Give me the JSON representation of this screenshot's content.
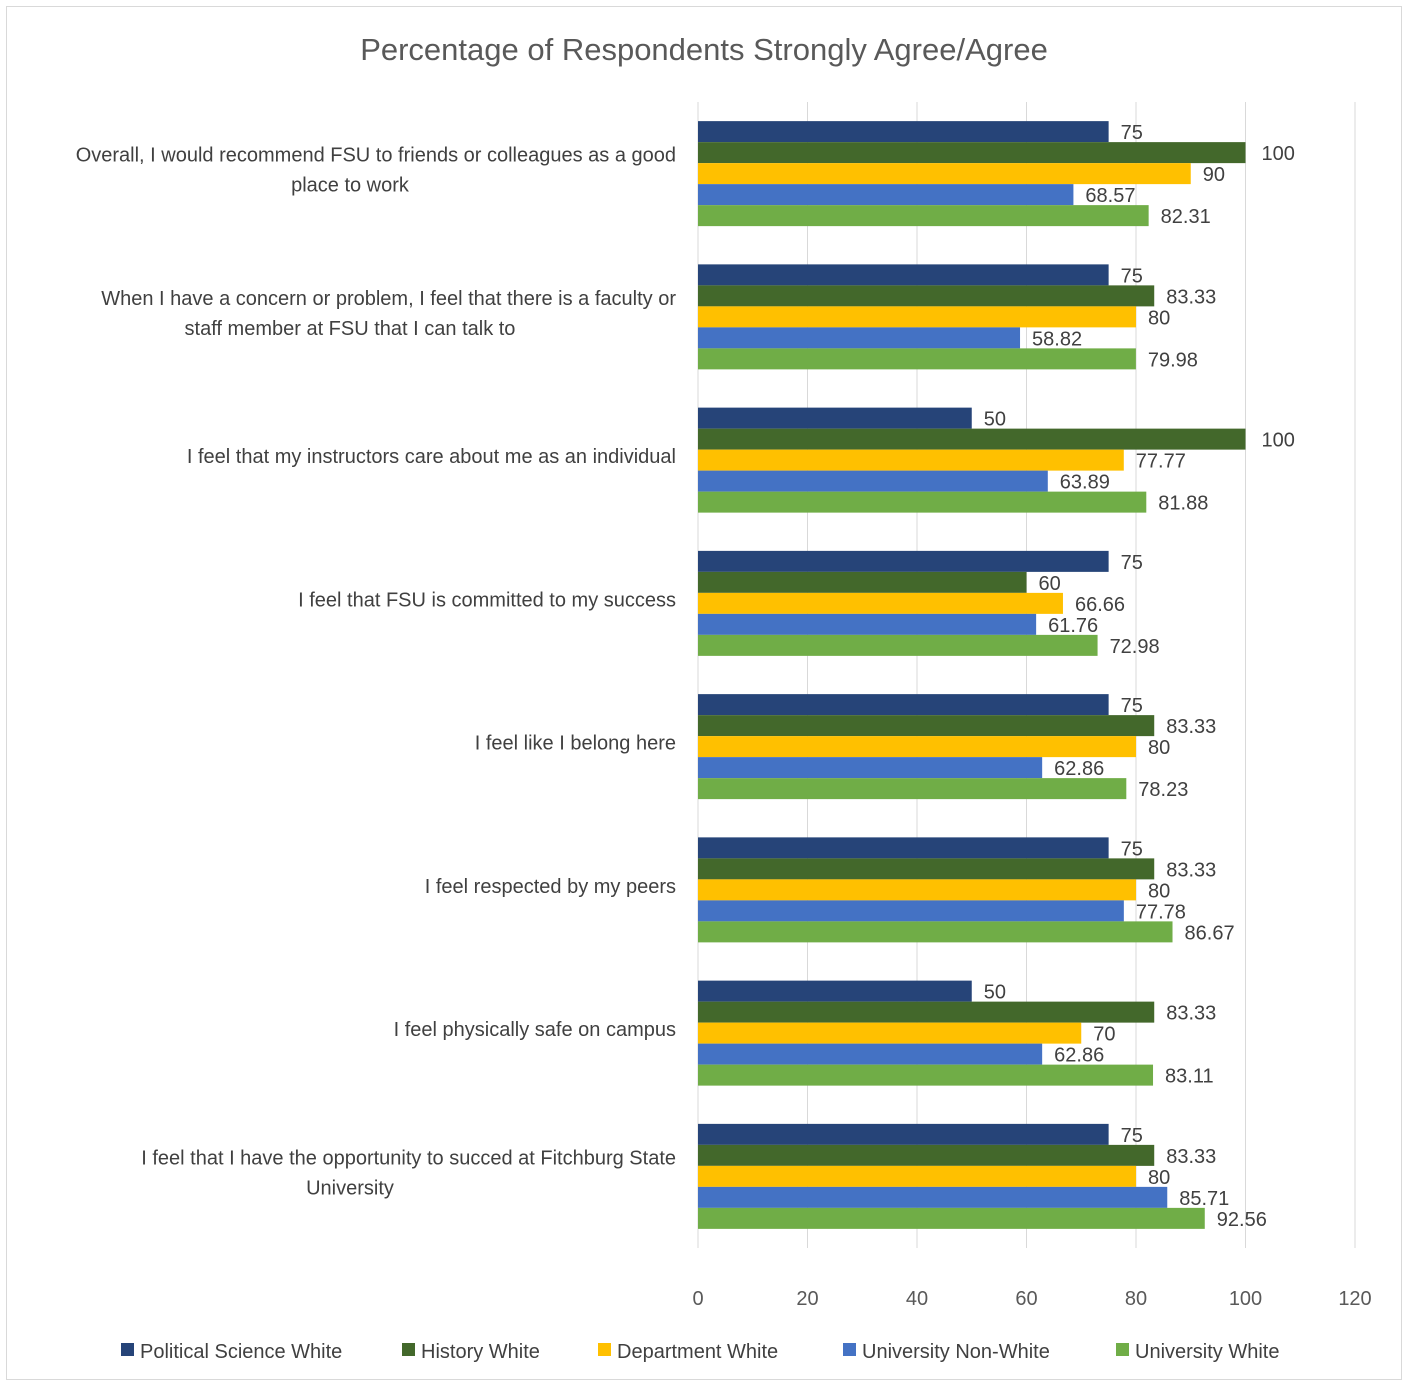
{
  "chart_data": {
    "type": "bar",
    "orientation": "horizontal",
    "title": "Percentage of Respondents Strongly Agree/Agree",
    "xlabel": "",
    "ylabel": "",
    "xlim": [
      0,
      120
    ],
    "x_ticks": [
      0,
      20,
      40,
      60,
      80,
      100,
      120
    ],
    "grid": true,
    "legend_position": "bottom",
    "categories": [
      [
        "Overall, I would recommend FSU to friends or colleagues as a good",
        "place to work"
      ],
      [
        "When I have a concern or problem, I feel that there is a faculty or",
        "staff member at FSU that I can talk to"
      ],
      [
        "I feel that my instructors care about me as an individual"
      ],
      [
        "I feel that FSU is committed to my success"
      ],
      [
        "I feel like I belong here"
      ],
      [
        "I feel respected by my peers"
      ],
      [
        "I feel physically safe on campus"
      ],
      [
        "I feel that I have the opportunity to succed at Fitchburg State",
        "University"
      ]
    ],
    "series": [
      {
        "name": "Political Science White",
        "color": "#264478",
        "values": [
          75,
          75,
          50,
          75,
          75,
          75,
          50,
          75
        ]
      },
      {
        "name": "History White",
        "color": "#43682B",
        "values": [
          100,
          83.33,
          100,
          60,
          83.33,
          83.33,
          83.33,
          83.33
        ]
      },
      {
        "name": "Department White",
        "color": "#FFC000",
        "values": [
          90,
          80,
          77.77,
          66.66,
          80,
          80,
          70,
          80
        ]
      },
      {
        "name": "University Non-White",
        "color": "#4472C4",
        "values": [
          68.57,
          58.82,
          63.89,
          61.76,
          62.86,
          77.78,
          62.86,
          85.71
        ]
      },
      {
        "name": "University White",
        "color": "#70AD47",
        "values": [
          82.31,
          79.98,
          81.88,
          72.98,
          78.23,
          86.67,
          83.11,
          92.56
        ]
      }
    ]
  }
}
